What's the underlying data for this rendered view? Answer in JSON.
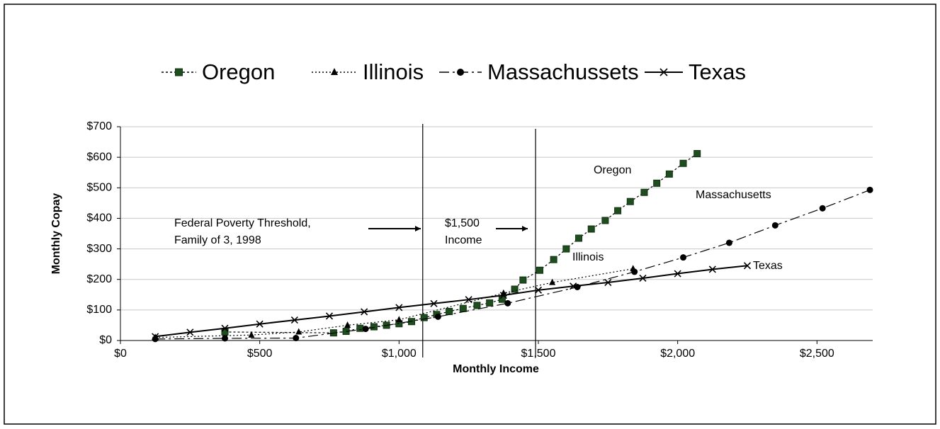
{
  "chart_data": {
    "type": "line",
    "xlabel": "Monthly Income",
    "ylabel": "Monthly Copay",
    "xlim": [
      0,
      2700
    ],
    "ylim": [
      0,
      700
    ],
    "xticks": [
      {
        "value": 0,
        "label": "$0"
      },
      {
        "value": 500,
        "label": "$500"
      },
      {
        "value": 1000,
        "label": "$1,000"
      },
      {
        "value": 1500,
        "label": "$1,500"
      },
      {
        "value": 2000,
        "label": "$2,000"
      },
      {
        "value": 2500,
        "label": "$2,500"
      }
    ],
    "yticks": [
      {
        "value": 0,
        "label": "$0"
      },
      {
        "value": 100,
        "label": "$100"
      },
      {
        "value": 200,
        "label": "$200"
      },
      {
        "value": 300,
        "label": "$300"
      },
      {
        "value": 400,
        "label": "$400"
      },
      {
        "value": 500,
        "label": "$500"
      },
      {
        "value": 600,
        "label": "$600"
      },
      {
        "value": 700,
        "label": "$700"
      }
    ],
    "grid": true,
    "legend": "top",
    "vlines": [
      1085,
      1490
    ],
    "annotations": [
      "Federal Poverty Threshold,",
      "Family of 3, 1998",
      "$1,500",
      "Income",
      "Oregon",
      "Massachusetts",
      "Illinois",
      "Texas"
    ],
    "series": [
      {
        "name": "Oregon",
        "color": "#1e4d1e",
        "marker": "square",
        "dash": "3,3",
        "x": [
          375,
          765,
          810,
          860,
          910,
          955,
          1000,
          1045,
          1090,
          1135,
          1180,
          1230,
          1280,
          1325,
          1370,
          1415,
          1445,
          1505,
          1555,
          1600,
          1645,
          1690,
          1740,
          1785,
          1830,
          1880,
          1925,
          1970,
          2020,
          2070
        ],
        "values": [
          28,
          25,
          30,
          40,
          45,
          50,
          55,
          62,
          75,
          85,
          95,
          105,
          115,
          123,
          135,
          168,
          198,
          230,
          265,
          300,
          335,
          365,
          393,
          425,
          455,
          485,
          515,
          545,
          580,
          612
        ]
      },
      {
        "name": "Illinois",
        "color": "#000000",
        "marker": "triangle",
        "dash": "2,3",
        "x": [
          125,
          470,
          640,
          815,
          1000,
          1375,
          1550,
          1840
        ],
        "values": [
          10,
          18,
          28,
          50,
          68,
          155,
          190,
          235
        ]
      },
      {
        "name": "Massachussets",
        "color": "#000000",
        "marker": "circle",
        "dash": "14,5,3,5",
        "x": [
          125,
          375,
          630,
          880,
          1140,
          1390,
          1640,
          1845,
          2020,
          2185,
          2350,
          2520,
          2690
        ],
        "values": [
          5,
          7,
          8,
          38,
          78,
          122,
          175,
          225,
          272,
          320,
          377,
          433,
          493
        ]
      },
      {
        "name": "Texas",
        "color": "#000000",
        "marker": "x",
        "dash": "",
        "x": [
          125,
          250,
          375,
          500,
          625,
          750,
          875,
          1000,
          1125,
          1250,
          1375,
          1500,
          1625,
          1750,
          1875,
          2000,
          2125,
          2250
        ],
        "values": [
          13,
          27,
          40,
          54,
          67,
          80,
          94,
          108,
          121,
          134,
          148,
          165,
          178,
          190,
          204,
          219,
          233,
          245
        ]
      }
    ]
  }
}
